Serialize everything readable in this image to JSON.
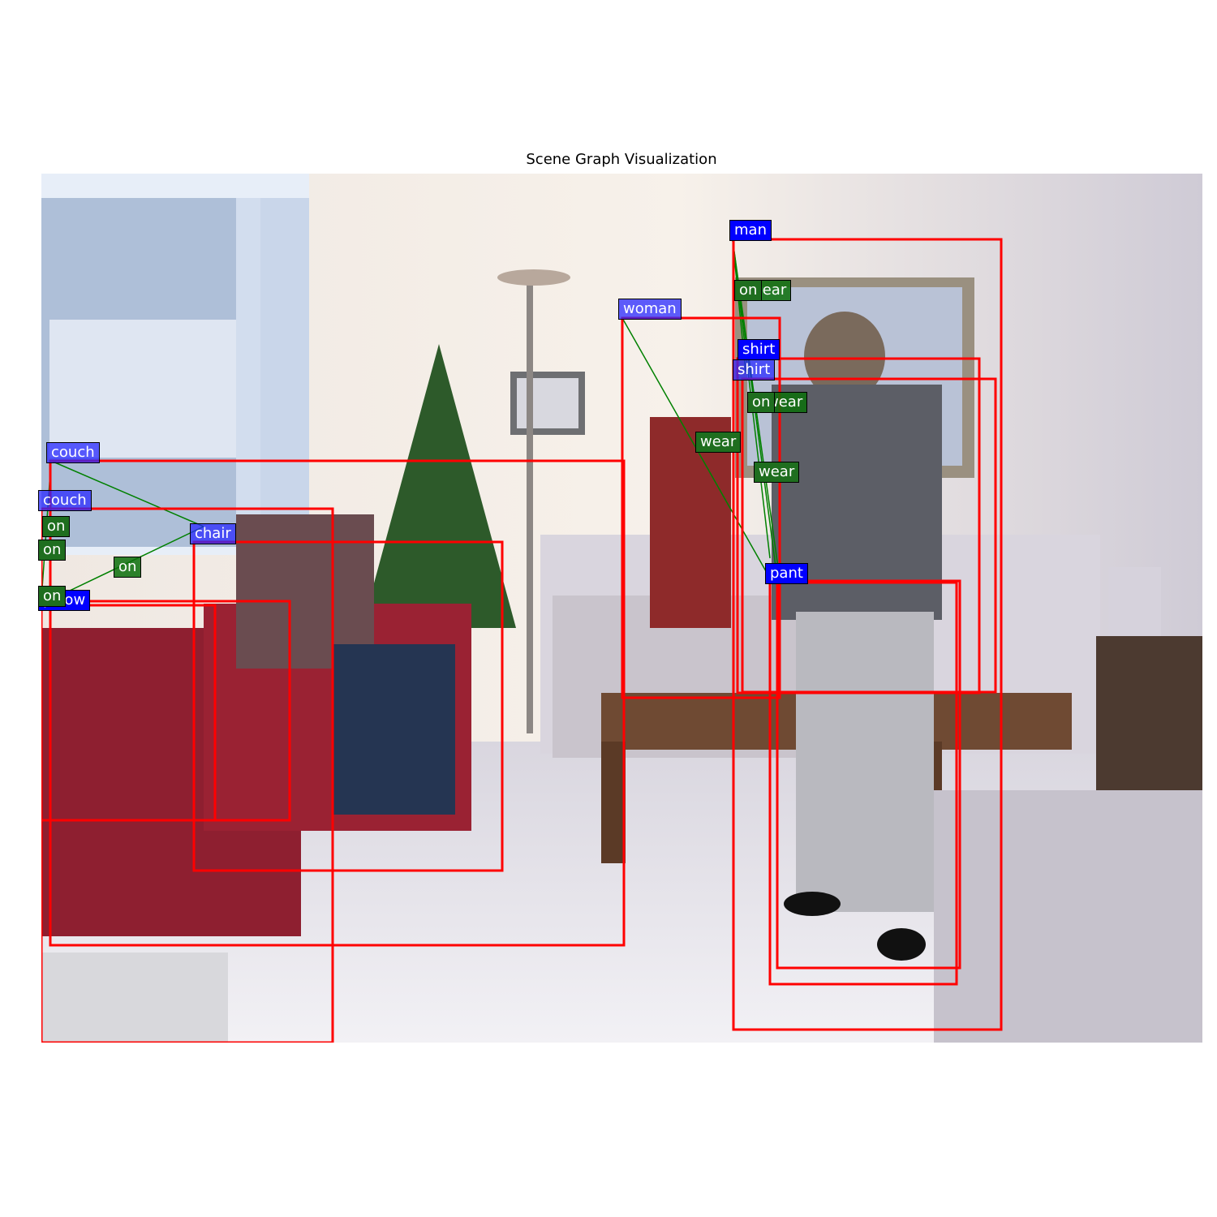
{
  "title": "Scene Graph Visualization",
  "colors": {
    "box": "#ff0000",
    "object_label": "#0000ff",
    "relation_label": "#1f6e1f",
    "edge": "#008000"
  },
  "objects": [
    "man",
    "woman",
    "shirt",
    "shirt",
    "pant",
    "couch",
    "couch",
    "chair",
    "pillow"
  ],
  "relations": [
    "wear",
    "on",
    "wear",
    "on",
    "wear",
    "wear",
    "on",
    "on",
    "on",
    "on"
  ]
}
